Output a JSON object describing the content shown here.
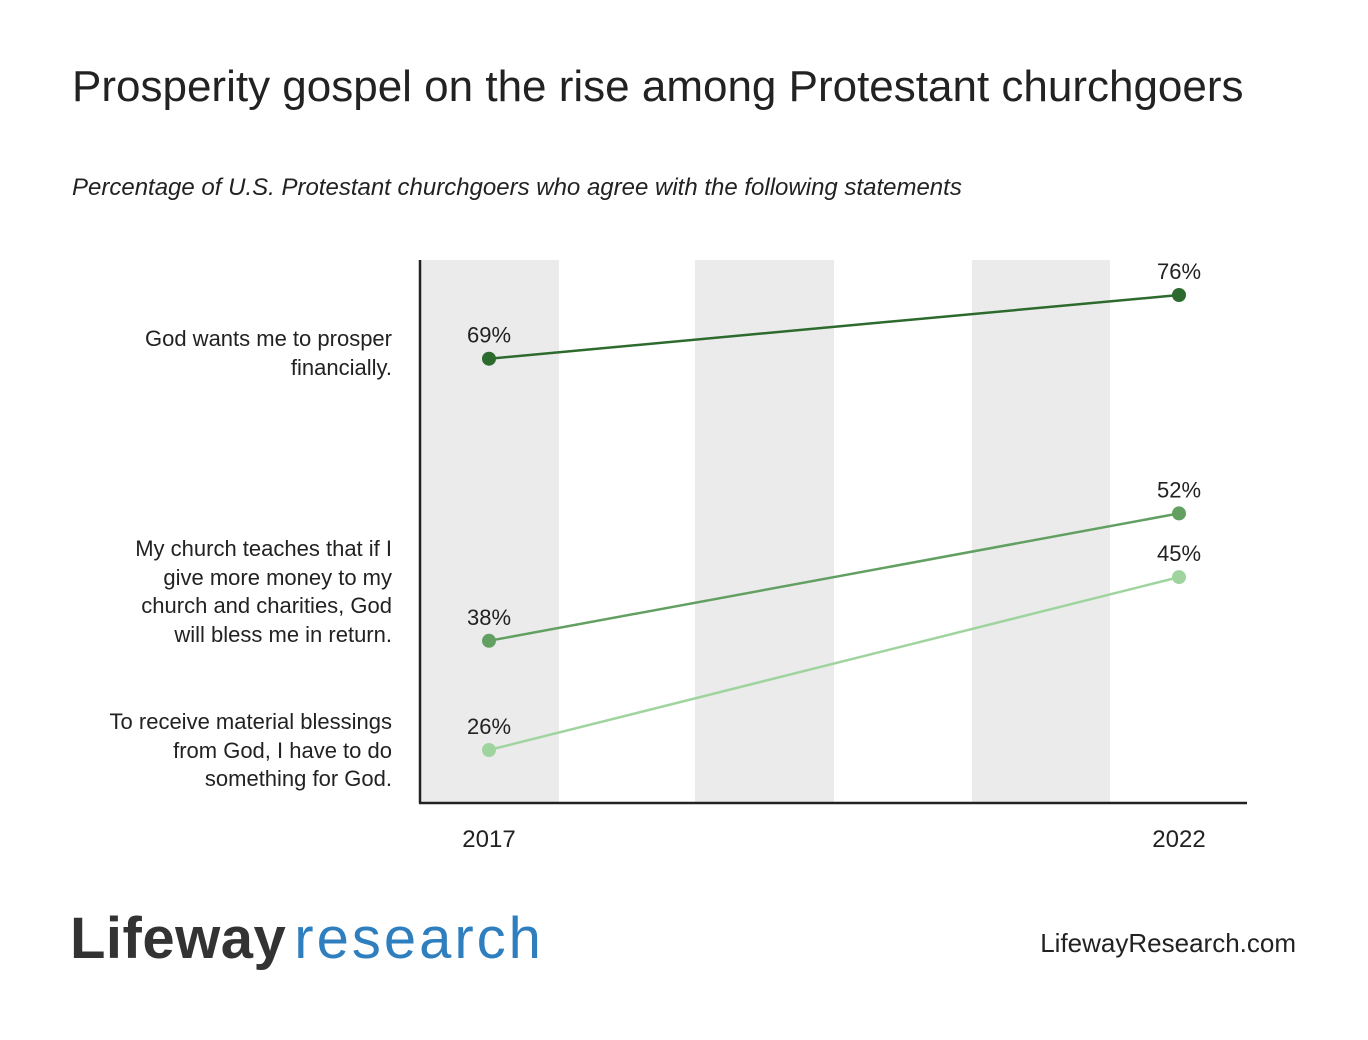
{
  "header": {
    "title": "Prosperity gospel on the rise among Protestant churchgoers",
    "subtitle": "Percentage of U.S. Protestant churchgoers who agree with the following statements"
  },
  "colors": {
    "series_dark": "#2d6a2d",
    "series_mid": "#62a062",
    "series_light": "#9fd49f",
    "band": "#ebebeb",
    "axis": "#222222",
    "brand_blue": "#2f7fbf",
    "brand_gray": "#333333"
  },
  "chart_data": {
    "type": "line",
    "x": [
      "2017",
      "2022"
    ],
    "ylim": [
      20,
      80
    ],
    "grid": false,
    "legend": "none",
    "series": [
      {
        "name_lines": [
          "God wants me to prosper",
          "financially."
        ],
        "values": [
          69,
          76
        ],
        "value_labels": [
          "69%",
          "76%"
        ],
        "color_key": "series_dark"
      },
      {
        "name_lines": [
          "My church teaches that if I",
          "give more money to my",
          "church and charities, God",
          "will bless me in return."
        ],
        "values": [
          38,
          52
        ],
        "value_labels": [
          "38%",
          "52%"
        ],
        "color_key": "series_mid"
      },
      {
        "name_lines": [
          "To receive material blessings",
          "from God, I have to do",
          "something for God."
        ],
        "values": [
          26,
          45
        ],
        "value_labels": [
          "26%",
          "45%"
        ],
        "color_key": "series_light"
      }
    ]
  },
  "footer": {
    "logo_brand": "Lifeway",
    "logo_word": "research",
    "url": "LifewayResearch.com"
  }
}
